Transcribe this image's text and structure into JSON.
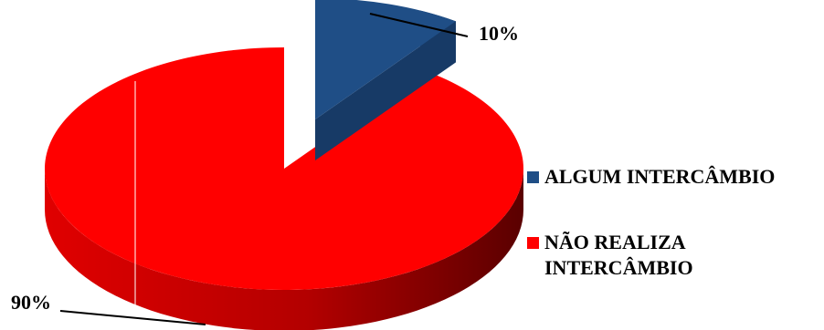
{
  "chart_data": {
    "type": "pie",
    "title": "",
    "categories": [
      "ALGUM INTERCÂMBIO",
      "NÃO REALIZA INTERCÂMBIO"
    ],
    "values": [
      10,
      90
    ],
    "labels": [
      "10%",
      "90%"
    ],
    "colors": [
      "#1f4e86",
      "#ff0000"
    ],
    "legend_position": "right",
    "style": "3d-exploded"
  }
}
